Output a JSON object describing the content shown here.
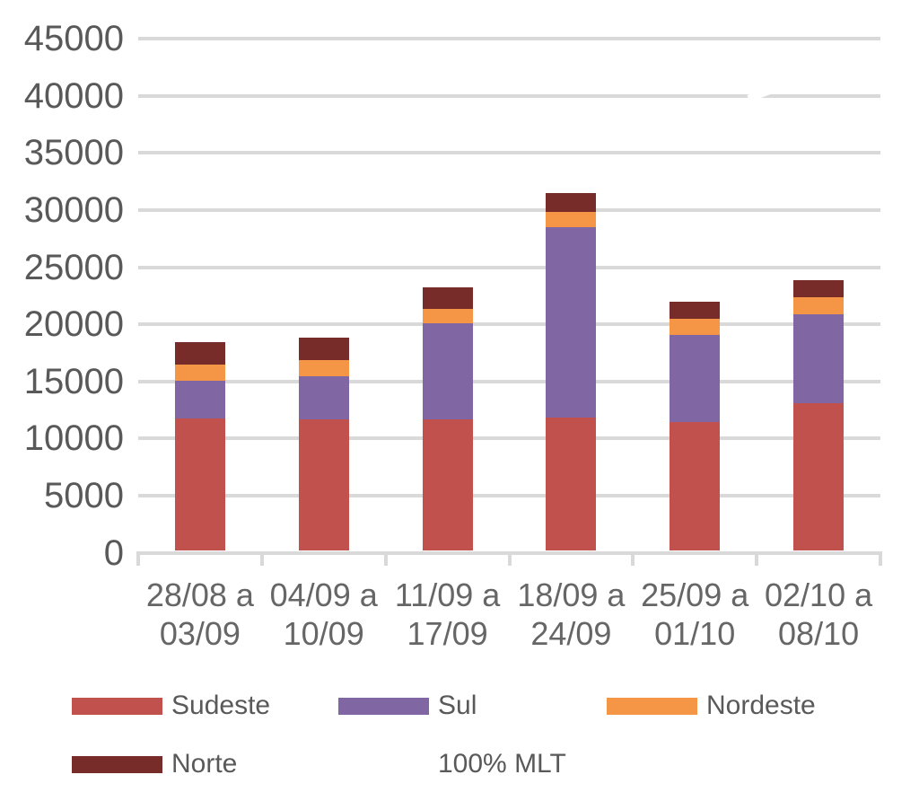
{
  "chart_data": {
    "type": "bar",
    "stacked": true,
    "title": "",
    "xlabel": "",
    "ylabel": "",
    "ylim": [
      0,
      45000
    ],
    "yticks": [
      0,
      5000,
      10000,
      15000,
      20000,
      25000,
      30000,
      35000,
      40000,
      45000
    ],
    "grid": true,
    "legend_position": "bottom",
    "categories": [
      [
        "28/08 a",
        "03/09"
      ],
      [
        "04/09 a",
        "10/09"
      ],
      [
        "11/09 a",
        "17/09"
      ],
      [
        "18/09 a",
        "24/09"
      ],
      [
        "25/09 a",
        "01/10"
      ],
      [
        "02/10 a",
        "08/10"
      ]
    ],
    "series": [
      {
        "name": "Sudeste",
        "color": "#C0514D",
        "values": [
          11600,
          11500,
          11500,
          11700,
          11300,
          12900
        ]
      },
      {
        "name": "Sul",
        "color": "#8066A2",
        "values": [
          3300,
          3800,
          8400,
          16600,
          7600,
          7800
        ]
      },
      {
        "name": "Nordeste",
        "color": "#F49646",
        "values": [
          1400,
          1400,
          1300,
          1400,
          1400,
          1500
        ]
      },
      {
        "name": "Norte",
        "color": "#772C2A",
        "values": [
          2000,
          2000,
          1900,
          1600,
          1500,
          1500
        ]
      }
    ],
    "totals": [
      18300,
      18700,
      23100,
      31300,
      21800,
      23700
    ],
    "line_series": {
      "name": "100% MLT",
      "color": "#FFFFFF",
      "approx_value": 40000,
      "note": "white line at ~40000; visible only as a diagonal gap crossing the 40000 gridline between the 5th and 6th categories"
    },
    "legend": {
      "rows": [
        [
          {
            "label": "Sudeste",
            "marker": "swatch",
            "color": "#C0514D"
          },
          {
            "label": "Sul",
            "marker": "swatch",
            "color": "#8066A2"
          },
          {
            "label": "Nordeste",
            "marker": "swatch",
            "color": "#F49646"
          }
        ],
        [
          {
            "label": "Norte",
            "marker": "swatch",
            "color": "#772C2A"
          },
          {
            "label": "100% MLT",
            "marker": "line",
            "color": "#FFFFFF"
          }
        ]
      ]
    },
    "colors": {
      "gridline": "#D9D9D9",
      "y_label_text": "#595959",
      "x_label_text": "#666666",
      "legend_text": "#595959",
      "background": "#FFFFFF"
    }
  }
}
